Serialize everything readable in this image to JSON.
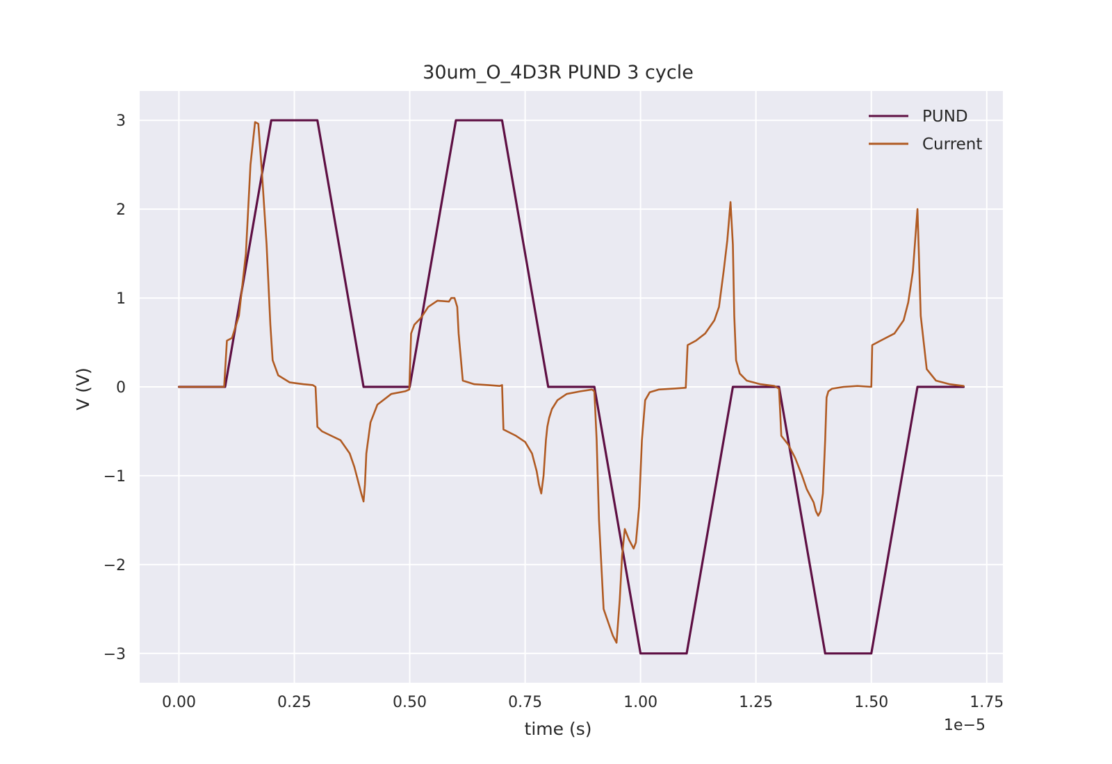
{
  "chart_data": {
    "type": "line",
    "title": "30um_O_4D3R PUND 3 cycle",
    "xlabel": "time (s)",
    "ylabel": "V (V)",
    "x_offset_label": "1e−5",
    "xlim": [
      -0.085,
      1.785
    ],
    "ylim": [
      -3.33,
      3.33
    ],
    "x_ticks": [
      0.0,
      0.25,
      0.5,
      0.75,
      1.0,
      1.25,
      1.5,
      1.75
    ],
    "x_tick_labels": [
      "0.00",
      "0.25",
      "0.50",
      "0.75",
      "1.00",
      "1.25",
      "1.50",
      "1.75"
    ],
    "y_ticks": [
      3,
      2,
      1,
      0,
      -1,
      -2,
      -3
    ],
    "y_tick_labels": [
      "3",
      "2",
      "1",
      "0",
      "−1",
      "−2",
      "−3"
    ],
    "grid": true,
    "legend_position": "top-right",
    "background": "#eaeaf2",
    "series": [
      {
        "name": "PUND",
        "color": "#5e0f43",
        "x": [
          0.0,
          0.1,
          0.2,
          0.3,
          0.4,
          0.5,
          0.6,
          0.7,
          0.8,
          0.9,
          1.0,
          1.1,
          1.2,
          1.3,
          1.4,
          1.5,
          1.6,
          1.7
        ],
        "y": [
          0.0,
          0.0,
          3.0,
          3.0,
          0.0,
          0.0,
          3.0,
          3.0,
          0.0,
          0.0,
          -3.0,
          -3.0,
          0.0,
          0.0,
          -3.0,
          -3.0,
          0.0,
          0.0
        ]
      },
      {
        "name": "Current",
        "color": "#b05a22",
        "x": [
          0.0,
          0.098,
          0.104,
          0.115,
          0.13,
          0.145,
          0.155,
          0.165,
          0.172,
          0.18,
          0.19,
          0.198,
          0.203,
          0.215,
          0.24,
          0.27,
          0.29,
          0.296,
          0.3,
          0.31,
          0.35,
          0.37,
          0.38,
          0.385,
          0.39,
          0.395,
          0.4,
          0.403,
          0.406,
          0.415,
          0.43,
          0.46,
          0.49,
          0.499,
          0.503,
          0.51,
          0.525,
          0.54,
          0.56,
          0.585,
          0.59,
          0.597,
          0.603,
          0.606,
          0.615,
          0.64,
          0.67,
          0.695,
          0.7,
          0.703,
          0.73,
          0.75,
          0.765,
          0.775,
          0.78,
          0.785,
          0.79,
          0.795,
          0.798,
          0.802,
          0.808,
          0.82,
          0.84,
          0.87,
          0.895,
          0.9,
          0.905,
          0.91,
          0.92,
          0.93,
          0.94,
          0.948,
          0.955,
          0.96,
          0.966,
          0.975,
          0.985,
          0.99,
          0.997,
          1.003,
          1.01,
          1.02,
          1.04,
          1.07,
          1.098,
          1.102,
          1.12,
          1.14,
          1.16,
          1.17,
          1.18,
          1.188,
          1.195,
          1.2,
          1.203,
          1.207,
          1.215,
          1.23,
          1.26,
          1.29,
          1.3,
          1.305,
          1.32,
          1.335,
          1.35,
          1.36,
          1.365,
          1.375,
          1.38,
          1.385,
          1.39,
          1.395,
          1.4,
          1.403,
          1.407,
          1.415,
          1.44,
          1.47,
          1.5,
          1.502,
          1.52,
          1.55,
          1.57,
          1.58,
          1.59,
          1.6,
          1.603,
          1.607,
          1.62,
          1.64,
          1.67,
          1.7
        ],
        "y": [
          0.0,
          0.0,
          0.52,
          0.55,
          0.8,
          1.5,
          2.5,
          2.98,
          2.96,
          2.4,
          1.6,
          0.7,
          0.3,
          0.13,
          0.05,
          0.03,
          0.02,
          0.0,
          -0.45,
          -0.5,
          -0.6,
          -0.75,
          -0.9,
          -1.0,
          -1.1,
          -1.2,
          -1.29,
          -1.1,
          -0.75,
          -0.4,
          -0.2,
          -0.08,
          -0.05,
          -0.03,
          0.6,
          0.7,
          0.78,
          0.9,
          0.97,
          0.96,
          1.0,
          1.0,
          0.9,
          0.6,
          0.07,
          0.03,
          0.02,
          0.01,
          0.02,
          -0.48,
          -0.55,
          -0.62,
          -0.75,
          -0.95,
          -1.1,
          -1.2,
          -1.0,
          -0.6,
          -0.45,
          -0.35,
          -0.25,
          -0.15,
          -0.08,
          -0.05,
          -0.03,
          -0.05,
          -0.6,
          -1.5,
          -2.5,
          -2.65,
          -2.8,
          -2.88,
          -2.4,
          -1.9,
          -1.6,
          -1.72,
          -1.82,
          -1.75,
          -1.35,
          -0.6,
          -0.15,
          -0.06,
          -0.03,
          -0.02,
          -0.01,
          0.47,
          0.52,
          0.6,
          0.75,
          0.9,
          1.3,
          1.65,
          2.08,
          1.6,
          0.8,
          0.3,
          0.15,
          0.07,
          0.03,
          0.01,
          -0.02,
          -0.55,
          -0.65,
          -0.8,
          -1.0,
          -1.15,
          -1.2,
          -1.3,
          -1.4,
          -1.45,
          -1.4,
          -1.2,
          -0.6,
          -0.12,
          -0.05,
          -0.02,
          0.0,
          0.01,
          0.0,
          0.47,
          0.52,
          0.6,
          0.75,
          0.95,
          1.3,
          2.0,
          1.5,
          0.8,
          0.2,
          0.07,
          0.03,
          0.01
        ]
      }
    ]
  }
}
